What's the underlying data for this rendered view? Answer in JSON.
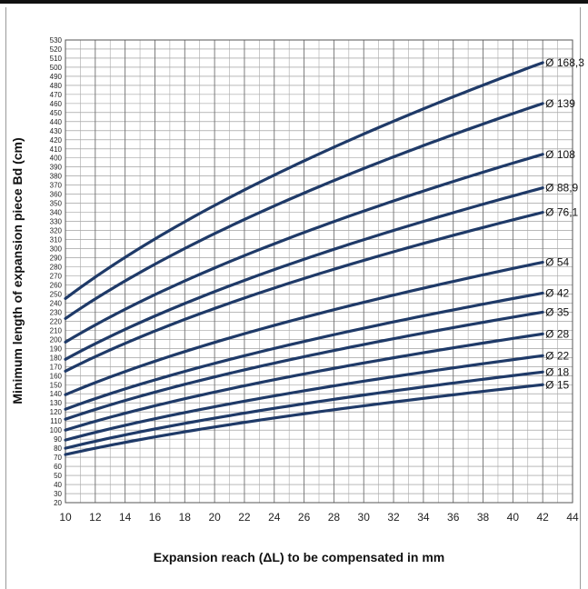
{
  "chart_data": {
    "type": "line",
    "xlabel": "Expansion reach  (ΔL) to be compensated in mm",
    "ylabel": "Minimum length of expansion piece Bd (cm)",
    "xlim": [
      10,
      44
    ],
    "ylim": [
      20,
      530
    ],
    "x_ticks": [
      "10",
      "12",
      "14",
      "16",
      "18",
      "20",
      "22",
      "24",
      "26",
      "28",
      "30",
      "32",
      "34",
      "36",
      "38",
      "40",
      "42",
      "44"
    ],
    "y_ticks": [
      "20",
      "30",
      "40",
      "50",
      "60",
      "70",
      "80",
      "90",
      "100",
      "110",
      "120",
      "130",
      "140",
      "150",
      "160",
      "170",
      "180",
      "190",
      "200",
      "210",
      "220",
      "230",
      "240",
      "250",
      "260",
      "270",
      "280",
      "290",
      "300",
      "310",
      "320",
      "330",
      "340",
      "350",
      "360",
      "370",
      "380",
      "390",
      "400",
      "410",
      "420",
      "430",
      "440",
      "450",
      "460",
      "470",
      "480",
      "490",
      "500",
      "510",
      "520",
      "530"
    ],
    "grid": true,
    "line_color": "#1f3a68",
    "series": [
      {
        "name": "Ø 168,3",
        "x": [
          10,
          42
        ],
        "y": [
          245,
          505
        ]
      },
      {
        "name": "Ø 139",
        "x": [
          10,
          42
        ],
        "y": [
          223,
          460
        ]
      },
      {
        "name": "Ø 108",
        "x": [
          10,
          42
        ],
        "y": [
          197,
          404
        ]
      },
      {
        "name": "Ø 88,9",
        "x": [
          10,
          42
        ],
        "y": [
          178,
          367
        ]
      },
      {
        "name": "Ø 76,1",
        "x": [
          10,
          42
        ],
        "y": [
          165,
          340
        ]
      },
      {
        "name": "Ø 54",
        "x": [
          10,
          42
        ],
        "y": [
          139,
          285
        ]
      },
      {
        "name": "Ø 42",
        "x": [
          10,
          42
        ],
        "y": [
          123,
          251
        ]
      },
      {
        "name": "Ø 35",
        "x": [
          10,
          42
        ],
        "y": [
          112,
          230
        ]
      },
      {
        "name": "Ø 28",
        "x": [
          10,
          42
        ],
        "y": [
          100,
          206
        ]
      },
      {
        "name": "Ø 22",
        "x": [
          10,
          42
        ],
        "y": [
          89,
          182
        ]
      },
      {
        "name": "Ø 18",
        "x": [
          10,
          42
        ],
        "y": [
          80,
          164
        ]
      },
      {
        "name": "Ø 15",
        "x": [
          10,
          42
        ],
        "y": [
          73,
          150
        ]
      }
    ]
  }
}
